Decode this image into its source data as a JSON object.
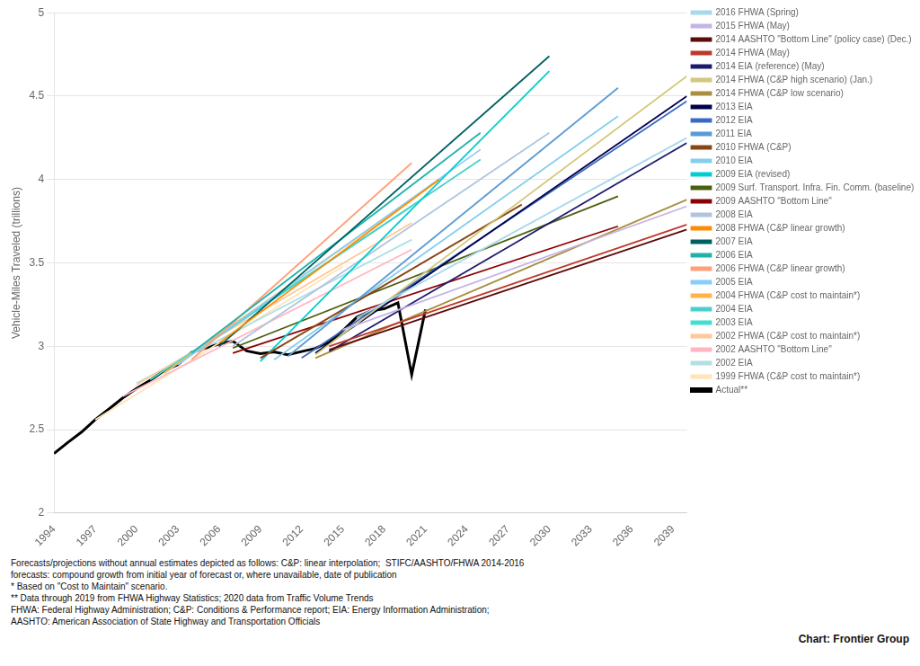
{
  "chart_data": {
    "type": "line",
    "ylabel": "Vehicle-Miles Traveled (trillions)",
    "xlim": [
      1994,
      2040
    ],
    "ylim": [
      2,
      5
    ],
    "xticks": [
      1994,
      1997,
      2000,
      2003,
      2006,
      2009,
      2012,
      2015,
      2018,
      2021,
      2024,
      2027,
      2030,
      2033,
      2036,
      2039
    ],
    "yticks": [
      2,
      2.5,
      3,
      3.5,
      4,
      4.5,
      5
    ],
    "grid": true,
    "legend": "right",
    "series": [
      {
        "name": "2016 FHWA (Spring)",
        "color": "#a8d8ea",
        "x": [
          2016,
          2040
        ],
        "values": [
          3.17,
          4.25
        ]
      },
      {
        "name": "2015 FHWA (May)",
        "color": "#c5b4e3",
        "x": [
          2015,
          2040
        ],
        "values": [
          3.1,
          3.84
        ]
      },
      {
        "name": "2014 AASHTO \"Bottom Line\" (policy case) (Dec.)",
        "color": "#5c0a0a",
        "x": [
          2014,
          2040
        ],
        "values": [
          2.98,
          3.7
        ]
      },
      {
        "name": "2014 FHWA (May)",
        "color": "#c0392b",
        "x": [
          2014,
          2040
        ],
        "values": [
          3.0,
          3.73
        ]
      },
      {
        "name": "2014 EIA (reference) (May)",
        "color": "#1a1a6e",
        "x": [
          2014,
          2040
        ],
        "values": [
          2.97,
          4.22
        ]
      },
      {
        "name": "2014 FHWA (C&P high scenario) (Jan.)",
        "color": "#d4c87a",
        "x": [
          2013,
          2040
        ],
        "values": [
          2.95,
          4.62
        ]
      },
      {
        "name": "2014 FHWA (C&P low scenario)",
        "color": "#a89040",
        "x": [
          2013,
          2040
        ],
        "values": [
          2.93,
          3.88
        ]
      },
      {
        "name": "2013 EIA",
        "color": "#00004d",
        "x": [
          2013,
          2040
        ],
        "values": [
          2.96,
          4.5
        ]
      },
      {
        "name": "2012 EIA",
        "color": "#3a6bbf",
        "x": [
          2012,
          2040
        ],
        "values": [
          2.93,
          4.47
        ]
      },
      {
        "name": "2011 EIA",
        "color": "#5b9bd5",
        "x": [
          2011,
          2035
        ],
        "values": [
          2.94,
          4.55
        ]
      },
      {
        "name": "2010 FHWA (C&P)",
        "color": "#8b4513",
        "x": [
          2009,
          2028
        ],
        "values": [
          2.93,
          3.85
        ]
      },
      {
        "name": "2010 EIA",
        "color": "#87ceeb",
        "x": [
          2010,
          2035
        ],
        "values": [
          2.92,
          4.38
        ]
      },
      {
        "name": "2009 EIA (revised)",
        "color": "#00ced1",
        "x": [
          2009,
          2030
        ],
        "values": [
          2.91,
          4.65
        ]
      },
      {
        "name": "2009 Surf. Transport. Infra. Fin. Comm. (baseline)",
        "color": "#4a6010",
        "x": [
          2007,
          2035
        ],
        "values": [
          2.99,
          3.9
        ]
      },
      {
        "name": "2009 AASHTO \"Bottom Line\"",
        "color": "#8b0000",
        "x": [
          2007,
          2035
        ],
        "values": [
          2.96,
          3.72
        ]
      },
      {
        "name": "2008 EIA",
        "color": "#b0c4de",
        "x": [
          2007,
          2030
        ],
        "values": [
          3.0,
          4.28
        ]
      },
      {
        "name": "2008 FHWA (C&P linear growth)",
        "color": "#ff8c00",
        "x": [
          2006,
          2022
        ],
        "values": [
          3.02,
          4.0
        ]
      },
      {
        "name": "2007 EIA",
        "color": "#006060",
        "x": [
          2006,
          2030
        ],
        "values": [
          3.0,
          4.74
        ]
      },
      {
        "name": "2006 EIA",
        "color": "#20b2aa",
        "x": [
          2004,
          2025
        ],
        "values": [
          2.96,
          4.28
        ]
      },
      {
        "name": "2006 FHWA (C&P linear growth)",
        "color": "#ffa07a",
        "x": [
          2004,
          2020
        ],
        "values": [
          2.92,
          4.1
        ]
      },
      {
        "name": "2005 EIA",
        "color": "#87cefa",
        "x": [
          2003,
          2025
        ],
        "values": [
          2.89,
          4.18
        ]
      },
      {
        "name": "2004 FHWA (C&P cost to maintain*)",
        "color": "#ffb347",
        "x": [
          2002,
          2020
        ],
        "values": [
          2.84,
          3.88
        ]
      },
      {
        "name": "2004 EIA",
        "color": "#48d1cc",
        "x": [
          2002,
          2025
        ],
        "values": [
          2.84,
          4.12
        ]
      },
      {
        "name": "2003 EIA",
        "color": "#40e0d0",
        "x": [
          2001,
          2020
        ],
        "values": [
          2.8,
          3.84
        ]
      },
      {
        "name": "2002 FHWA (C&P cost to maintain*)",
        "color": "#ffc896",
        "x": [
          2000,
          2020
        ],
        "values": [
          2.77,
          3.74
        ]
      },
      {
        "name": "2002 AASHTO \"Bottom Line\"",
        "color": "#ffb6c1",
        "x": [
          1999,
          2020
        ],
        "values": [
          2.7,
          3.58
        ]
      },
      {
        "name": "2002 EIA",
        "color": "#b0e0e6",
        "x": [
          2000,
          2020
        ],
        "values": [
          2.78,
          3.64
        ]
      },
      {
        "name": "1999 FHWA (C&P cost to maintain*)",
        "color": "#ffe4b5",
        "x": [
          1997,
          2015
        ],
        "values": [
          2.56,
          3.48
        ]
      },
      {
        "name": "Actual**",
        "color": "#000000",
        "x": [
          1994,
          1995,
          1996,
          1997,
          1998,
          1999,
          2000,
          2001,
          2002,
          2003,
          2004,
          2005,
          2006,
          2007,
          2008,
          2009,
          2010,
          2011,
          2012,
          2013,
          2014,
          2015,
          2016,
          2017,
          2018,
          2019,
          2020,
          2021
        ],
        "values": [
          2.358,
          2.423,
          2.486,
          2.561,
          2.625,
          2.691,
          2.747,
          2.797,
          2.854,
          2.89,
          2.964,
          2.989,
          3.014,
          3.031,
          2.973,
          2.956,
          2.967,
          2.95,
          2.969,
          2.988,
          3.026,
          3.095,
          3.174,
          3.212,
          3.225,
          3.261,
          2.83,
          3.221
        ]
      }
    ],
    "annotations": [
      "Forecasts/projections without annual estimates depicted as follows: C&P: linear interpolation;  STIFC/AASHTO/FHWA 2014-2016\nforecasts: compound growth from initial year of forecast or, where unavailable, date of publication\n* Based on \"Cost to Maintain\" scenario.\n** Data through 2019 from FHWA Highway Statistics; 2020 data from Traffic Volume Trends\nFHWA: Federal Highway Administration; C&P: Conditions & Performance report; EIA: Energy Information Administration;\nAASHTO: American Association of State Highway and Transportation Officials",
      "Chart: Frontier Group"
    ]
  }
}
